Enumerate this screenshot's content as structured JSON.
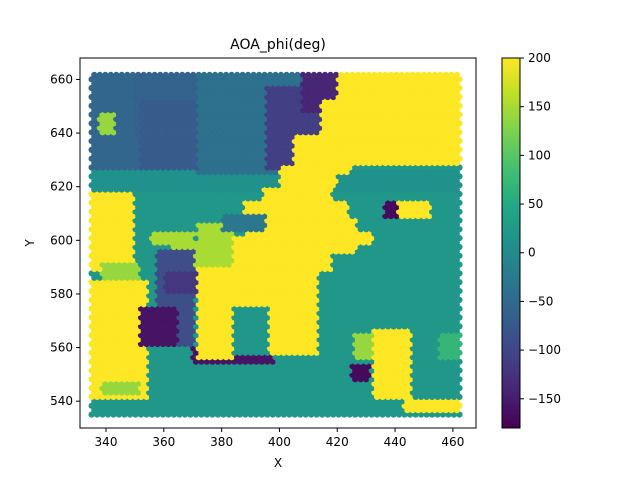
{
  "chart_data": {
    "type": "heatmap",
    "title": "AOA_phi(deg)",
    "xlabel": "X",
    "ylabel": "Y",
    "xlim": [
      331,
      468
    ],
    "ylim": [
      530,
      668
    ],
    "x_ticks": [
      340,
      360,
      380,
      400,
      420,
      440,
      460
    ],
    "y_ticks": [
      540,
      560,
      580,
      600,
      620,
      640,
      660
    ],
    "x_tick_labels": [
      "340",
      "360",
      "380",
      "400",
      "420",
      "440",
      "460"
    ],
    "y_tick_labels": [
      "540",
      "560",
      "580",
      "600",
      "620",
      "640",
      "660"
    ],
    "colorbar": {
      "colormap": "viridis",
      "vmin": -180,
      "vmax": 200,
      "ticks": [
        200,
        150,
        100,
        50,
        0,
        -50,
        -100,
        -150
      ],
      "tick_labels": [
        "200",
        "150",
        "100",
        "50",
        "0",
        "−50",
        "−100",
        "−150"
      ]
    },
    "marker": "hexagon",
    "grid": false,
    "x_range_data": [
      335,
      463
    ],
    "y_range_data": [
      535,
      663
    ],
    "regions": [
      {
        "x": [
          335,
          463
        ],
        "y": [
          535,
          630
        ],
        "value": 20
      },
      {
        "x": [
          335,
          463
        ],
        "y": [
          618,
          626
        ],
        "value": 10
      },
      {
        "x": [
          335,
          355
        ],
        "y": [
          626,
          663
        ],
        "value": -55
      },
      {
        "x": [
          350,
          430
        ],
        "y": [
          638,
          663
        ],
        "value": -60
      },
      {
        "x": [
          352,
          372
        ],
        "y": [
          626,
          652
        ],
        "value": -70
      },
      {
        "x": [
          372,
          408
        ],
        "y": [
          625,
          663
        ],
        "value": -40
      },
      {
        "x": [
          395,
          418
        ],
        "y": [
          626,
          658
        ],
        "value": -110
      },
      {
        "x": [
          408,
          430
        ],
        "y": [
          648,
          663
        ],
        "value": -140
      },
      {
        "x": [
          335,
          350
        ],
        "y": [
          588,
          618
        ],
        "value": 200
      },
      {
        "x": [
          335,
          354
        ],
        "y": [
          540,
          586
        ],
        "value": 200
      },
      {
        "x": [
          338,
          352
        ],
        "y": [
          542,
          547
        ],
        "value": 140
      },
      {
        "x": [
          338,
          352
        ],
        "y": [
          586,
          591
        ],
        "value": 140
      },
      {
        "x": [
          337,
          343
        ],
        "y": [
          640,
          648
        ],
        "value": 140
      },
      {
        "x": [
          355,
          371
        ],
        "y": [
          598,
          603
        ],
        "value": 150
      },
      {
        "x": [
          362,
          392
        ],
        "y": [
          588,
          600
        ],
        "value": 150
      },
      {
        "x": [
          372,
          384
        ],
        "y": [
          600,
          607
        ],
        "value": 150
      },
      {
        "x": [
          357,
          371
        ],
        "y": [
          560,
          596
        ],
        "value": -90
      },
      {
        "x": [
          352,
          365
        ],
        "y": [
          560,
          576
        ],
        "value": -160
      },
      {
        "x": [
          370,
          385
        ],
        "y": [
          554,
          560
        ],
        "value": -160
      },
      {
        "x": [
          385,
          398
        ],
        "y": [
          554,
          570
        ],
        "value": -160
      },
      {
        "x": [
          360,
          372
        ],
        "y": [
          580,
          588
        ],
        "value": -120
      },
      {
        "x": [
          394,
          418
        ],
        "y": [
          613,
          620
        ],
        "value": 200
      },
      {
        "x": [
          388,
          424
        ],
        "y": [
          601,
          614
        ],
        "value": 200
      },
      {
        "x": [
          384,
          418
        ],
        "y": [
          588,
          601
        ],
        "value": 200
      },
      {
        "x": [
          396,
          413
        ],
        "y": [
          557,
          588
        ],
        "value": 200
      },
      {
        "x": [
          372,
          384
        ],
        "y": [
          556,
          590
        ],
        "value": 200
      },
      {
        "x": [
          384,
          396
        ],
        "y": [
          576,
          590
        ],
        "value": 200
      },
      {
        "x": [
          414,
          427
        ],
        "y": [
          595,
          608
        ],
        "value": 200
      },
      {
        "x": [
          427,
          432
        ],
        "y": [
          598,
          604
        ],
        "value": 200
      },
      {
        "x": [
          380,
          395
        ],
        "y": [
          604,
          610
        ],
        "value": -30
      },
      {
        "x": [
          384,
          396
        ],
        "y": [
          558,
          572
        ],
        "value": 20
      },
      {
        "x": [
          420,
          463
        ],
        "y": [
          628,
          663
        ],
        "value": 200
      },
      {
        "x": [
          400,
          420
        ],
        "y": [
          620,
          628
        ],
        "value": 200
      },
      {
        "x": [
          405,
          425
        ],
        "y": [
          625,
          640
        ],
        "value": 200
      },
      {
        "x": [
          414,
          428
        ],
        "y": [
          640,
          652
        ],
        "value": 200
      },
      {
        "x": [
          441,
          452
        ],
        "y": [
          609,
          614
        ],
        "value": 200
      },
      {
        "x": [
          436,
          441
        ],
        "y": [
          609,
          614
        ],
        "value": -170
      },
      {
        "x": [
          432,
          446
        ],
        "y": [
          540,
          567
        ],
        "value": 200
      },
      {
        "x": [
          426,
          432
        ],
        "y": [
          556,
          565
        ],
        "value": 140
      },
      {
        "x": [
          443,
          463
        ],
        "y": [
          536,
          540
        ],
        "value": 200
      },
      {
        "x": [
          455,
          463
        ],
        "y": [
          555,
          565
        ],
        "value": 70
      },
      {
        "x": [
          425,
          431
        ],
        "y": [
          547,
          554
        ],
        "value": -170
      }
    ]
  }
}
